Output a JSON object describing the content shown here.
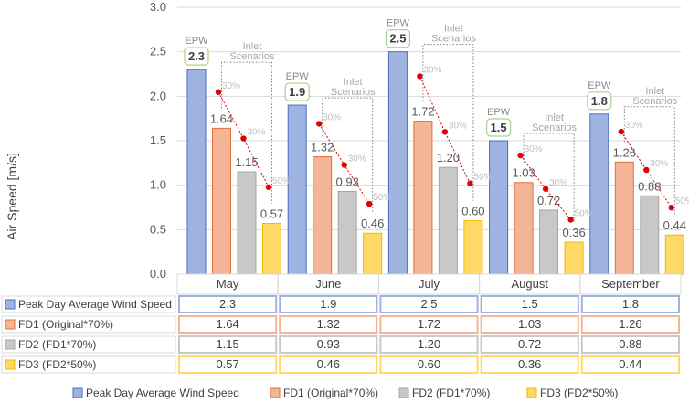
{
  "chart_data": {
    "type": "bar",
    "ylabel": "Air Speed [m/s]",
    "ylim": [
      0,
      3
    ],
    "yticks": [
      "0.0",
      "0.5",
      "1.0",
      "1.5",
      "2.0",
      "2.5",
      "3.0"
    ],
    "categories": [
      "May",
      "June",
      "July",
      "August",
      "September"
    ],
    "series": [
      {
        "name": "Peak Day Average Wind Speed",
        "values": [
          2.3,
          1.9,
          2.5,
          1.5,
          1.8
        ],
        "labels": [
          "2.3",
          "1.9",
          "2.5",
          "1.5",
          "1.8"
        ],
        "fill": "#9fb3e0",
        "stroke": "#4a6fbf"
      },
      {
        "name": "FD1 (Original*70%)",
        "values": [
          1.64,
          1.32,
          1.72,
          1.03,
          1.26
        ],
        "labels": [
          "1.64",
          "1.32",
          "1.72",
          "1.03",
          "1.26"
        ],
        "fill": "#f4b496",
        "stroke": "#e0703c"
      },
      {
        "name": "FD2 (FD1*70%)",
        "values": [
          1.15,
          0.93,
          1.2,
          0.72,
          0.88
        ],
        "labels": [
          "1.15",
          "0.93",
          "1.20",
          "0.72",
          "0.88"
        ],
        "fill": "#c8c8c8",
        "stroke": "#a6a6a6"
      },
      {
        "name": "FD3 (FD2*50%)",
        "values": [
          0.57,
          0.46,
          0.6,
          0.36,
          0.44
        ],
        "labels": [
          "0.57",
          "0.46",
          "0.60",
          "0.36",
          "0.44"
        ],
        "fill": "#ffd966",
        "stroke": "#f2b800"
      }
    ],
    "annotations": {
      "epw_tag": "EPW",
      "inlet_line1": "Inlet",
      "inlet_line2": "Scenarios",
      "pct_labels": [
        "30%",
        "30%",
        "50%"
      ],
      "dot_color": "#e00000"
    },
    "grid": true,
    "legend_position": "bottom",
    "data_table": true
  }
}
